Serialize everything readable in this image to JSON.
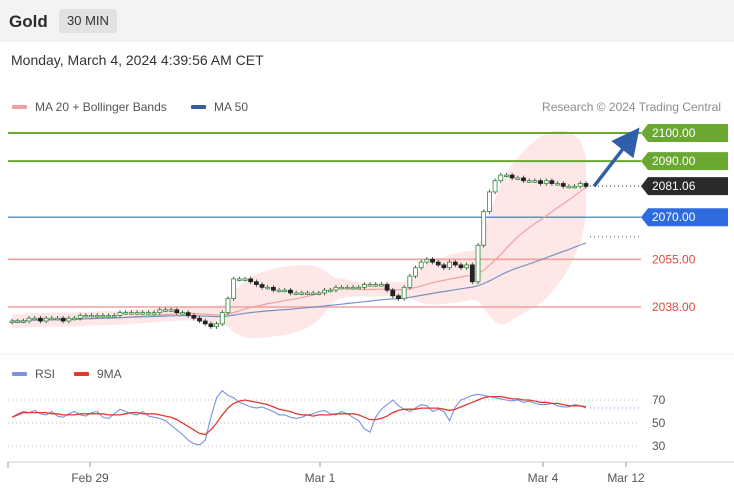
{
  "header": {
    "title": "Gold",
    "interval": "30 MIN",
    "datetime": "Monday, March 4, 2024 4:39:56 AM CET"
  },
  "legend": {
    "ma20": {
      "label": "MA 20 + Bollinger Bands",
      "color": "#f0a0a0"
    },
    "ma50": {
      "label": "MA 50",
      "color": "#3a5aa0"
    },
    "credit": "Research © 2024 Trading Central"
  },
  "rsi_legend": {
    "rsi": {
      "label": "RSI",
      "color": "#7b92e0"
    },
    "ma9": {
      "label": "9MA",
      "color": "#e03a30"
    }
  },
  "chart_data": [
    {
      "type": "candlestick",
      "instrument": "Gold",
      "timeframe": "30 MIN",
      "x_ticks": [
        "Feb 29",
        "Mar 1",
        "Mar 4",
        "Mar 12"
      ],
      "levels": [
        {
          "value": 2100.0,
          "label": "2100.00",
          "style": "resistance",
          "color": "#6aa832"
        },
        {
          "value": 2090.0,
          "label": "2090.00",
          "style": "resistance",
          "color": "#6aa832"
        },
        {
          "value": 2081.06,
          "label": "2081.06",
          "style": "last-price",
          "color": "#2a2a2a"
        },
        {
          "value": 2070.0,
          "label": "2070.00",
          "style": "pivot",
          "color": "#2e6be0"
        },
        {
          "value": 2055.0,
          "label": "2055.00",
          "style": "support",
          "color": "#f4a0a0"
        },
        {
          "value": 2038.0,
          "label": "2038.00",
          "style": "support",
          "color": "#f4a0a0"
        }
      ],
      "forecast_arrow": {
        "from": 2081,
        "to": 2098
      },
      "closes": [
        2033,
        2033,
        2033,
        2034,
        2034,
        2033,
        2034,
        2034,
        2034,
        2033,
        2034,
        2034,
        2035,
        2035,
        2035,
        2035,
        2035,
        2035,
        2035,
        2036,
        2036,
        2036,
        2036,
        2036,
        2036,
        2036,
        2037,
        2037,
        2037,
        2036,
        2036,
        2035,
        2034,
        2033,
        2032,
        2031,
        2032,
        2036,
        2041,
        2048,
        2048,
        2048,
        2047,
        2046,
        2045,
        2045,
        2044,
        2044,
        2044,
        2043,
        2043,
        2043,
        2043,
        2043,
        2043,
        2044,
        2044,
        2045,
        2045,
        2045,
        2045,
        2045,
        2046,
        2046,
        2046,
        2046,
        2044,
        2042,
        2041,
        2045,
        2049,
        2052,
        2054,
        2055,
        2054,
        2053,
        2052,
        2054,
        2053,
        2052,
        2053,
        2047,
        2060,
        2072,
        2079,
        2083,
        2085,
        2085,
        2084,
        2084,
        2083,
        2083,
        2083,
        2082,
        2083,
        2082,
        2082,
        2081,
        2081,
        2081,
        2082,
        2081
      ]
    },
    {
      "type": "line",
      "name": "RSI panel",
      "y_ticks": [
        30,
        50,
        70
      ],
      "series": [
        {
          "name": "RSI",
          "values": [
            55,
            58,
            60,
            59,
            61,
            58,
            57,
            60,
            56,
            55,
            58,
            60,
            57,
            56,
            59,
            60,
            55,
            54,
            58,
            62,
            60,
            58,
            57,
            60,
            56,
            55,
            54,
            52,
            48,
            44,
            40,
            35,
            32,
            31,
            35,
            55,
            72,
            78,
            74,
            72,
            68,
            66,
            64,
            63,
            64,
            62,
            60,
            57,
            57,
            55,
            54,
            55,
            57,
            58,
            60,
            61,
            58,
            57,
            60,
            58,
            55,
            52,
            45,
            42,
            55,
            62,
            66,
            70,
            65,
            62,
            60,
            63,
            66,
            65,
            60,
            62,
            60,
            52,
            64,
            70,
            72,
            74,
            75,
            74,
            73,
            72,
            71,
            70,
            69,
            70,
            68,
            69,
            67,
            66,
            66,
            67,
            65,
            64,
            64,
            66,
            65,
            63
          ]
        },
        {
          "name": "9MA",
          "values": [
            55,
            57,
            59,
            59,
            59,
            59,
            59,
            58,
            58,
            57,
            57,
            57,
            58,
            58,
            58,
            58,
            58,
            57,
            57,
            57,
            58,
            59,
            59,
            58,
            58,
            58,
            57,
            56,
            55,
            53,
            50,
            47,
            44,
            41,
            40,
            44,
            50,
            57,
            63,
            67,
            69,
            70,
            69,
            68,
            67,
            66,
            64,
            62,
            61,
            60,
            58,
            57,
            57,
            56,
            57,
            57,
            57,
            58,
            58,
            58,
            58,
            57,
            55,
            53,
            53,
            54,
            56,
            59,
            61,
            62,
            62,
            62,
            63,
            63,
            63,
            63,
            62,
            61,
            62,
            64,
            66,
            68,
            70,
            72,
            73,
            73,
            73,
            72,
            71,
            71,
            70,
            70,
            69,
            68,
            68,
            67,
            67,
            66,
            65,
            65,
            65,
            64
          ]
        }
      ]
    }
  ]
}
